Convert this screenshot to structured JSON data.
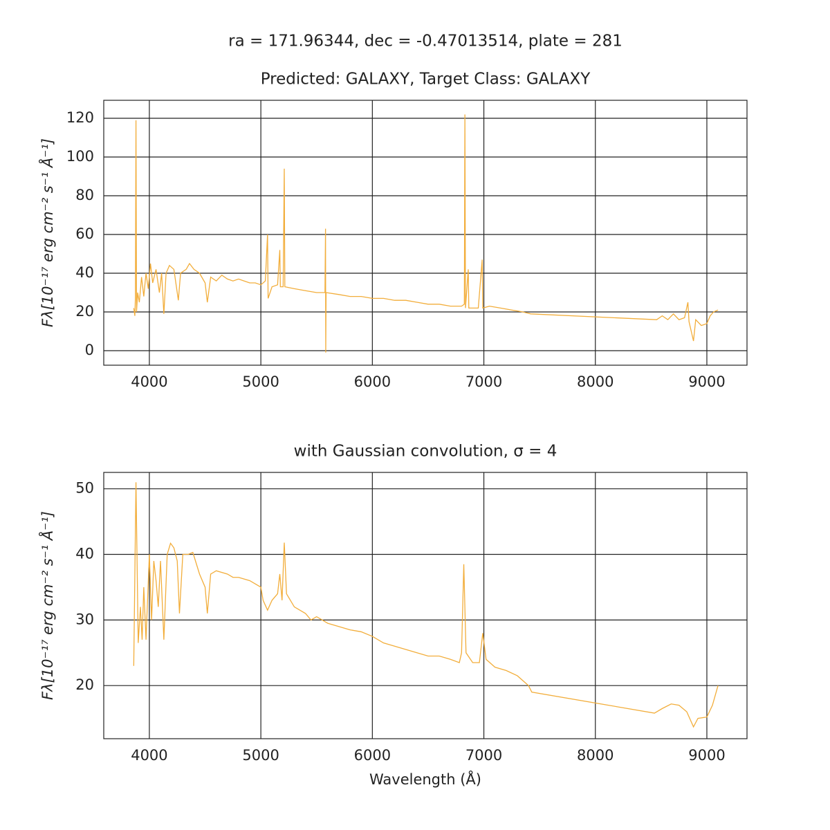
{
  "title": "ra = 171.96344, dec = -0.47013514, plate = 281",
  "chart_data": [
    {
      "type": "line",
      "title": "Predicted: GALAXY, Target Class: GALAXY",
      "y_label": "Fλ[10⁻¹⁷ erg cm⁻² s⁻¹ Å⁻¹]",
      "color": "#f2ad3a",
      "grid": true,
      "xlim": [
        3591,
        9360
      ],
      "xticks": [
        4000,
        5000,
        6000,
        7000,
        8000,
        9000
      ],
      "ylim": [
        -7.5,
        129.3
      ],
      "yticks": [
        0,
        20,
        40,
        60,
        80,
        100,
        120
      ],
      "x": [
        3860,
        3870,
        3875,
        3880,
        3885,
        3895,
        3910,
        3930,
        3950,
        3970,
        3990,
        4010,
        4030,
        4060,
        4090,
        4110,
        4130,
        4150,
        4180,
        4220,
        4260,
        4280,
        4330,
        4360,
        4400,
        4450,
        4500,
        4520,
        4550,
        4600,
        4650,
        4700,
        4750,
        4800,
        4850,
        4900,
        4950,
        5000,
        5040,
        5060,
        5065,
        5100,
        5150,
        5170,
        5175,
        5200,
        5210,
        5215,
        5300,
        5400,
        5500,
        5575,
        5580,
        5582,
        5585,
        5700,
        5800,
        5900,
        6000,
        6100,
        6200,
        6300,
        6400,
        6500,
        6600,
        6700,
        6800,
        6825,
        6830,
        6835,
        6860,
        6865,
        6950,
        6985,
        6990,
        7050,
        7150,
        7250,
        7350,
        7420,
        8550,
        8600,
        8650,
        8700,
        8750,
        8800,
        8830,
        8840,
        8880,
        8900,
        8950,
        9000,
        9030,
        9060,
        9100
      ],
      "values": [
        22,
        18,
        28,
        119,
        20,
        30,
        25,
        38,
        28,
        40,
        32,
        45,
        35,
        42,
        30,
        40,
        19,
        40,
        44,
        42,
        26,
        40,
        42,
        45,
        42,
        40,
        35,
        25,
        38,
        36,
        39,
        37,
        36,
        37,
        36,
        35,
        35,
        34,
        36,
        60,
        27,
        33,
        34,
        52,
        33,
        33,
        94,
        33,
        32,
        31,
        30,
        30,
        63,
        -1,
        30,
        29,
        28,
        28,
        27,
        27,
        26,
        26,
        25,
        24,
        24,
        23,
        23,
        24,
        122,
        22,
        42,
        22,
        22,
        47,
        22,
        23,
        22,
        21,
        20,
        19,
        16,
        18,
        16,
        19,
        16,
        17,
        25,
        15,
        5,
        16,
        13,
        14,
        18,
        20,
        21
      ]
    },
    {
      "type": "line",
      "title": "with Gaussian convolution, σ = 4",
      "y_label": "Fλ[10⁻¹⁷ erg cm⁻² s⁻¹ Å⁻¹]",
      "x_label": "Wavelength (Å)",
      "color": "#f2ad3a",
      "grid": true,
      "xlim": [
        3591,
        9360
      ],
      "xticks": [
        4000,
        5000,
        6000,
        7000,
        8000,
        9000
      ],
      "ylim": [
        11.9,
        52.5
      ],
      "yticks": [
        20,
        30,
        40,
        50
      ],
      "x": [
        3860,
        3880,
        3900,
        3920,
        3935,
        3950,
        3970,
        4000,
        4020,
        4040,
        4060,
        4080,
        4100,
        4130,
        4160,
        4190,
        4220,
        4250,
        4270,
        4300,
        4350,
        4390,
        4450,
        4500,
        4520,
        4550,
        4600,
        4700,
        4750,
        4800,
        4900,
        4950,
        5000,
        5020,
        5060,
        5100,
        5150,
        5170,
        5190,
        5210,
        5230,
        5300,
        5400,
        5450,
        5500,
        5600,
        5700,
        5800,
        5900,
        6000,
        6100,
        6200,
        6300,
        6400,
        6500,
        6600,
        6700,
        6780,
        6800,
        6820,
        6840,
        6900,
        6960,
        6990,
        7020,
        7100,
        7200,
        7300,
        7400,
        7430,
        8530,
        8600,
        8680,
        8750,
        8820,
        8880,
        8920,
        9000,
        9050,
        9100
      ],
      "values": [
        23,
        51,
        26.5,
        32,
        27,
        35,
        27,
        40,
        30,
        39,
        36,
        32,
        39,
        27,
        40,
        41.7,
        41,
        39,
        31,
        40,
        40,
        40.3,
        37,
        35,
        31,
        37,
        37.5,
        37,
        36.5,
        36.5,
        36,
        35.5,
        35,
        33,
        31.5,
        33,
        34,
        37,
        33,
        41.8,
        34,
        32,
        31,
        30,
        30.5,
        29.5,
        29,
        28.5,
        28.2,
        27.5,
        26.5,
        26,
        25.5,
        25,
        24.5,
        24.5,
        24,
        23.5,
        25,
        38.5,
        25,
        23.5,
        23.5,
        28,
        24,
        22.8,
        22.3,
        21.5,
        20,
        19,
        15.8,
        16.5,
        17.2,
        17,
        16,
        13.7,
        15,
        15.2,
        17,
        20
      ]
    }
  ]
}
